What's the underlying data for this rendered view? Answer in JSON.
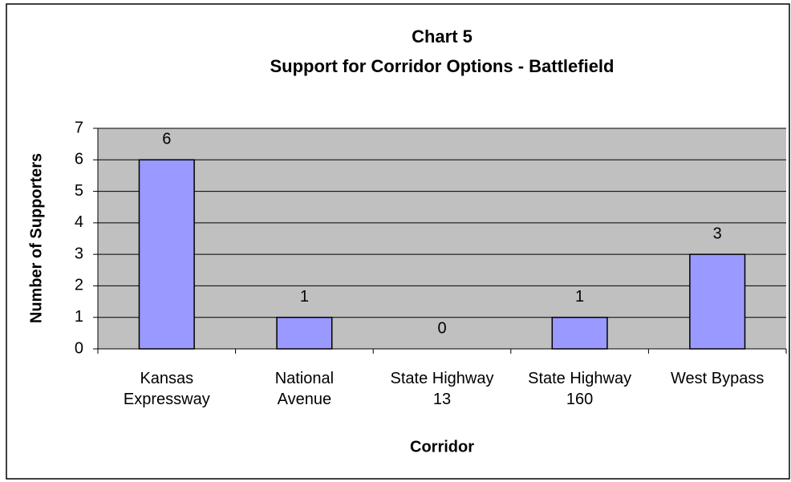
{
  "chart_data": {
    "type": "bar",
    "title": "Chart 5",
    "subtitle": "Support for Corridor Options - Battlefield",
    "x_label": "Corridor",
    "y_label": "Number of Supporters",
    "categories": [
      "Kansas Expressway",
      "National Avenue",
      "State Highway 13",
      "State Highway 160",
      "West Bypass"
    ],
    "values": [
      6,
      1,
      0,
      1,
      3
    ],
    "color": "#9999ff",
    "ylim": [
      0,
      7
    ],
    "yticks": [
      0,
      1,
      2,
      3,
      4,
      5,
      6,
      7
    ],
    "grid": true
  }
}
